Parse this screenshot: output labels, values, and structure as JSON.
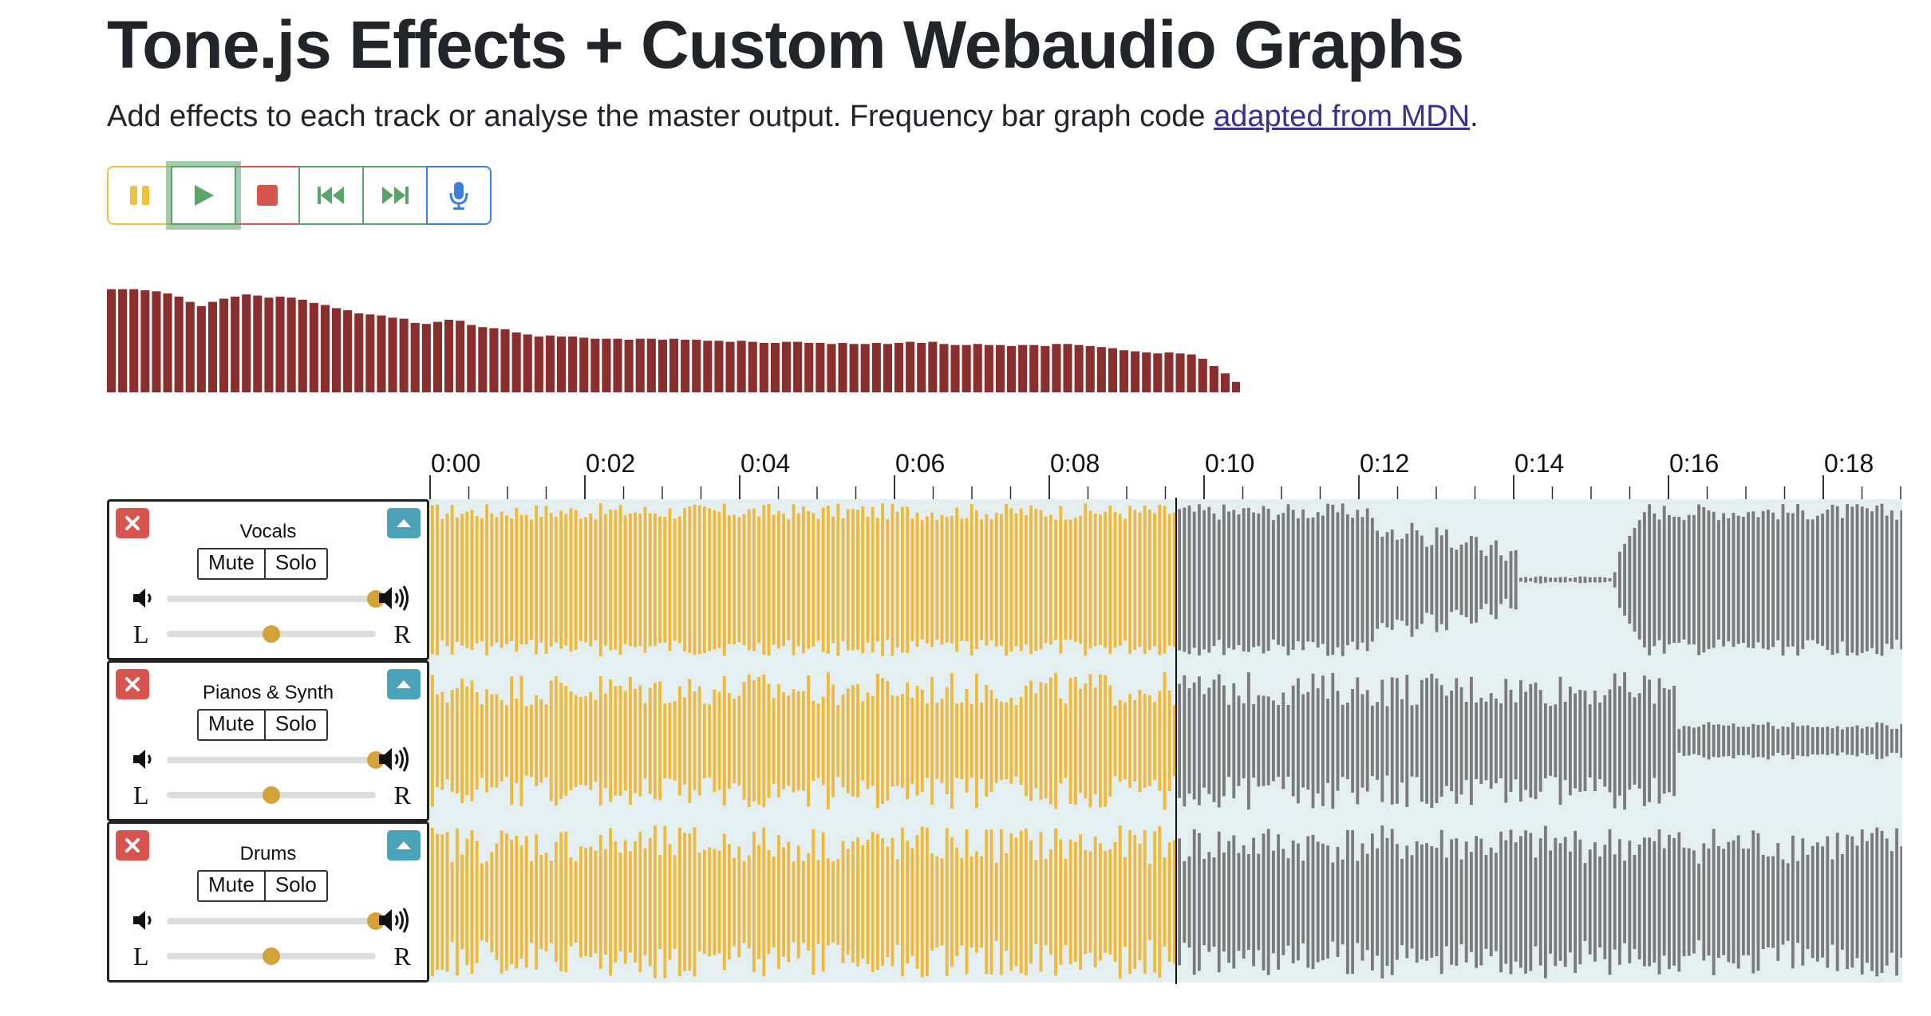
{
  "page": {
    "title": "Tone.js Effects + Custom Webaudio Graphs",
    "subtitle_text": "Add effects to each track or analyse the master output. Frequency bar graph code ",
    "subtitle_link": "adapted from MDN",
    "subtitle_end": "."
  },
  "transport": {
    "buttons": [
      {
        "name": "pause",
        "icon": "pause-icon",
        "color": "#f0c040"
      },
      {
        "name": "play",
        "icon": "play-icon",
        "color": "#5aa469"
      },
      {
        "name": "stop",
        "icon": "stop-icon",
        "color": "#d9534f"
      },
      {
        "name": "rewind",
        "icon": "skip-back-icon",
        "color": "#5aa469"
      },
      {
        "name": "fast-forward",
        "icon": "skip-forward-icon",
        "color": "#5aa469"
      },
      {
        "name": "record",
        "icon": "microphone-icon",
        "color": "#3c7fd8"
      }
    ]
  },
  "analyser": {
    "bar_color": "#8b2e2e",
    "levels": [
      0.98,
      0.98,
      0.98,
      0.97,
      0.96,
      0.94,
      0.91,
      0.86,
      0.82,
      0.86,
      0.89,
      0.91,
      0.93,
      0.92,
      0.9,
      0.91,
      0.9,
      0.88,
      0.85,
      0.83,
      0.8,
      0.78,
      0.75,
      0.74,
      0.73,
      0.71,
      0.7,
      0.66,
      0.65,
      0.67,
      0.69,
      0.68,
      0.64,
      0.62,
      0.61,
      0.6,
      0.57,
      0.55,
      0.53,
      0.54,
      0.53,
      0.53,
      0.52,
      0.51,
      0.51,
      0.51,
      0.5,
      0.51,
      0.51,
      0.5,
      0.51,
      0.5,
      0.5,
      0.49,
      0.49,
      0.48,
      0.49,
      0.48,
      0.47,
      0.47,
      0.48,
      0.48,
      0.47,
      0.47,
      0.46,
      0.47,
      0.46,
      0.46,
      0.47,
      0.46,
      0.47,
      0.48,
      0.47,
      0.48,
      0.46,
      0.45,
      0.45,
      0.46,
      0.45,
      0.45,
      0.44,
      0.45,
      0.45,
      0.44,
      0.46,
      0.46,
      0.45,
      0.44,
      0.43,
      0.42,
      0.4,
      0.39,
      0.38,
      0.37,
      0.38,
      0.37,
      0.36,
      0.32,
      0.25,
      0.18,
      0.1
    ]
  },
  "timeline": {
    "labels": [
      "0:00",
      "0:02",
      "0:04",
      "0:06",
      "0:08",
      "0:10",
      "0:12",
      "0:14",
      "0:16",
      "0:18"
    ],
    "seconds_per_label": 2,
    "max_seconds": 19,
    "playhead_seconds": 10
  },
  "colors": {
    "played": "#f0b93a",
    "unplayed": "#7a7a7a",
    "wave_bg": "#e4eff1"
  },
  "tracks": [
    {
      "name": "Vocals",
      "mute_label": "Mute",
      "solo_label": "Solo",
      "pan_left": "L",
      "pan_right": "R",
      "volume": 1.0,
      "pan": 0.5
    },
    {
      "name": "Pianos & Synth",
      "mute_label": "Mute",
      "solo_label": "Solo",
      "pan_left": "L",
      "pan_right": "R",
      "volume": 1.0,
      "pan": 0.5
    },
    {
      "name": "Drums",
      "mute_label": "Mute",
      "solo_label": "Solo",
      "pan_left": "L",
      "pan_right": "R",
      "volume": 1.0,
      "pan": 0.5
    }
  ]
}
